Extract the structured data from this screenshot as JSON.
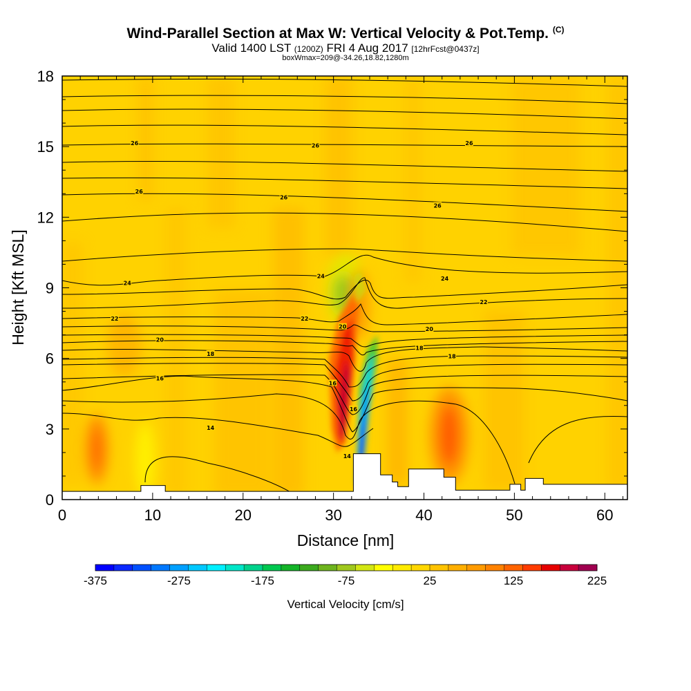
{
  "chart_data": {
    "type": "heatmap",
    "title": "Wind-Parallel Section at Max W: Vertical Velocity & Pot.Temp.",
    "title_units": "(C)",
    "subtitle_main_a": "Valid 1400 LST",
    "subtitle_small_a": "(1200Z)",
    "subtitle_main_b": "FRI 4 Aug 2017",
    "subtitle_small_b": "[12hrFcst@0437z]",
    "subtitle2": "boxWmax=209@-34.26,18.82,1280m",
    "xlabel": "Distance [nm]",
    "ylabel": "Height [Kft MSL]",
    "xlim": [
      0,
      62.5
    ],
    "ylim": [
      0,
      18
    ],
    "xticks": [
      0,
      10,
      20,
      30,
      40,
      50,
      60
    ],
    "yticks": [
      0,
      3,
      6,
      9,
      12,
      15,
      18
    ],
    "colorbar": {
      "label": "Vertical Velocity [cm/s]",
      "min": -375,
      "max": 225,
      "step": 25,
      "tick_labels": [
        "-375",
        "-275",
        "-175",
        "-75",
        "25",
        "125",
        "225"
      ],
      "colors": [
        "#0000ff",
        "#0a28ff",
        "#0050ff",
        "#0078ff",
        "#00a0ff",
        "#00c8ff",
        "#00f0ff",
        "#00e6c8",
        "#00d28c",
        "#00c850",
        "#14b428",
        "#3caa1e",
        "#6eb41e",
        "#a0c81e",
        "#d2e614",
        "#ffff00",
        "#ffeb00",
        "#ffd700",
        "#ffc300",
        "#ffaf00",
        "#ff9b00",
        "#ff8200",
        "#ff6400",
        "#ff3c00",
        "#e60000",
        "#c8003c",
        "#a00050"
      ]
    },
    "terrain_kft": [
      [
        0,
        0.35
      ],
      [
        8.7,
        0.35
      ],
      [
        8.7,
        0.6
      ],
      [
        11.4,
        0.6
      ],
      [
        11.4,
        0.35
      ],
      [
        32.2,
        0.35
      ],
      [
        32.2,
        1.95
      ],
      [
        35.2,
        1.95
      ],
      [
        35.2,
        1.05
      ],
      [
        36.5,
        1.05
      ],
      [
        36.5,
        0.75
      ],
      [
        37.1,
        0.75
      ],
      [
        37.1,
        0.55
      ],
      [
        38.3,
        0.55
      ],
      [
        38.3,
        1.3
      ],
      [
        42.2,
        1.3
      ],
      [
        42.2,
        0.95
      ],
      [
        43.5,
        0.95
      ],
      [
        43.5,
        0.4
      ],
      [
        49.5,
        0.4
      ],
      [
        49.5,
        0.65
      ],
      [
        50.7,
        0.65
      ],
      [
        50.7,
        0.4
      ],
      [
        51.2,
        0.4
      ],
      [
        51.2,
        0.9
      ],
      [
        53.2,
        0.9
      ],
      [
        53.2,
        0.65
      ],
      [
        62.5,
        0.65
      ]
    ],
    "contour_labels": [
      {
        "text": "26",
        "x": 8,
        "y": 15.15
      },
      {
        "text": "26",
        "x": 28,
        "y": 15.05
      },
      {
        "text": "26",
        "x": 45,
        "y": 15.15
      },
      {
        "text": "26",
        "x": 8.5,
        "y": 13.1
      },
      {
        "text": "26",
        "x": 24.5,
        "y": 12.85
      },
      {
        "text": "26",
        "x": 41.5,
        "y": 12.5
      },
      {
        "text": "24",
        "x": 7.2,
        "y": 9.2
      },
      {
        "text": "24",
        "x": 28.6,
        "y": 9.5
      },
      {
        "text": "24",
        "x": 42.3,
        "y": 9.4
      },
      {
        "text": "22",
        "x": 46.6,
        "y": 8.4
      },
      {
        "text": "22",
        "x": 5.8,
        "y": 7.7
      },
      {
        "text": "22",
        "x": 26.8,
        "y": 7.7
      },
      {
        "text": "20",
        "x": 31,
        "y": 7.35
      },
      {
        "text": "20",
        "x": 40.6,
        "y": 7.25
      },
      {
        "text": "20",
        "x": 10.8,
        "y": 6.8
      },
      {
        "text": "18",
        "x": 16.4,
        "y": 6.2
      },
      {
        "text": "18",
        "x": 39.5,
        "y": 6.45
      },
      {
        "text": "18",
        "x": 43.1,
        "y": 6.1
      },
      {
        "text": "16",
        "x": 10.8,
        "y": 5.15
      },
      {
        "text": "16",
        "x": 29.9,
        "y": 4.95
      },
      {
        "text": "16",
        "x": 32.2,
        "y": 3.85
      },
      {
        "text": "14",
        "x": 16.4,
        "y": 3.05
      },
      {
        "text": "14",
        "x": 31.5,
        "y": 1.85
      }
    ]
  }
}
